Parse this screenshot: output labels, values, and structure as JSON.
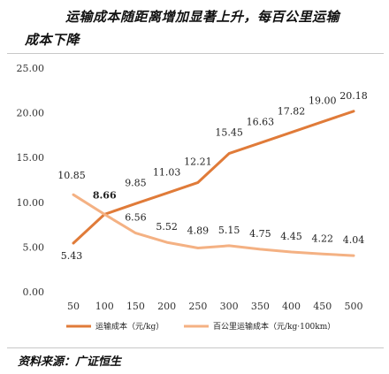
{
  "header": {
    "title_line1": "运输成本随距离增加显著上升，每百公里运输",
    "title_line2": "成本下降"
  },
  "footer": {
    "source": "资料来源：广证恒生"
  },
  "chart_data": {
    "type": "line",
    "title": "运输成本随距离增加显著上升，每百公里运输成本下降",
    "x": [
      50,
      100,
      150,
      200,
      250,
      300,
      350,
      400,
      450,
      500
    ],
    "y_ticks": [
      "0.00",
      "5.00",
      "10.00",
      "15.00",
      "20.00",
      "25.00"
    ],
    "ylim": [
      0,
      25
    ],
    "xlabel": "",
    "ylabel": "",
    "grid": false,
    "legend_position": "bottom",
    "series": [
      {
        "name": "运输成本（元/kg）",
        "color": "#E07B39",
        "values": [
          5.43,
          8.66,
          9.85,
          11.03,
          12.21,
          15.45,
          16.63,
          17.82,
          19.0,
          20.18
        ],
        "labels": [
          "5.43",
          "8.66",
          "9.85",
          "11.03",
          "12.21",
          "15.45",
          "16.63",
          "17.82",
          "19.00",
          "20.18"
        ]
      },
      {
        "name": "百公里运输成本（元/kg·100km）",
        "color": "#F4B183",
        "values": [
          10.85,
          8.66,
          6.56,
          5.52,
          4.89,
          5.15,
          4.75,
          4.45,
          4.22,
          4.04
        ],
        "labels": [
          "10.85",
          "",
          "6.56",
          "5.52",
          "4.89",
          "5.15",
          "4.75",
          "4.45",
          "4.22",
          "4.04"
        ]
      }
    ]
  }
}
